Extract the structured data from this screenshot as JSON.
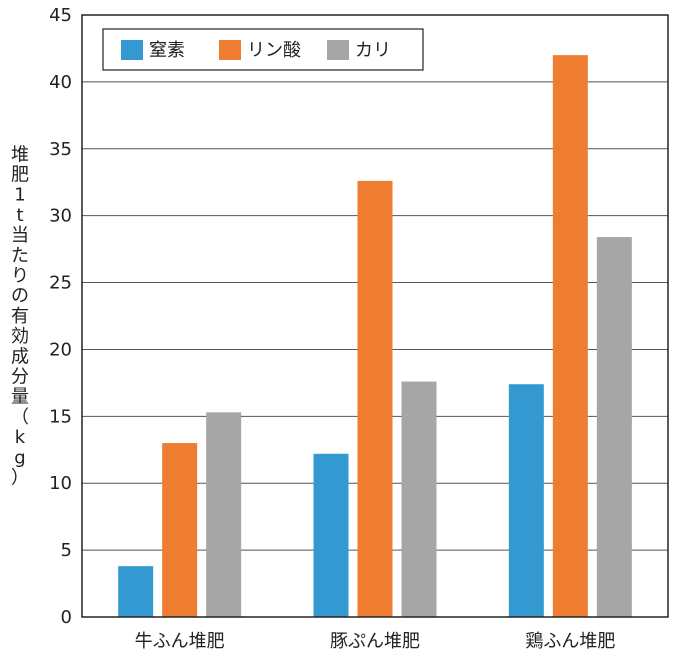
{
  "chart_data": {
    "type": "bar",
    "title": "",
    "xlabel": "",
    "ylabel": "堆肥1t当たりの有効成分量（kg）",
    "ylim": [
      0,
      45
    ],
    "yticks": [
      0,
      5,
      10,
      15,
      20,
      25,
      30,
      35,
      40,
      45
    ],
    "grid": true,
    "legend_position": "top-left",
    "categories": [
      "牛ふん堆肥",
      "豚ぷん堆肥",
      "鶏ふん堆肥"
    ],
    "series": [
      {
        "name": "窒素",
        "color": "#3399d0",
        "values": [
          3.8,
          12.2,
          17.4
        ]
      },
      {
        "name": "リン酸",
        "color": "#ee7d31",
        "values": [
          13.0,
          32.6,
          42.0
        ]
      },
      {
        "name": "カリ",
        "color": "#a6a6a6",
        "values": [
          15.3,
          17.6,
          28.4
        ]
      }
    ]
  }
}
